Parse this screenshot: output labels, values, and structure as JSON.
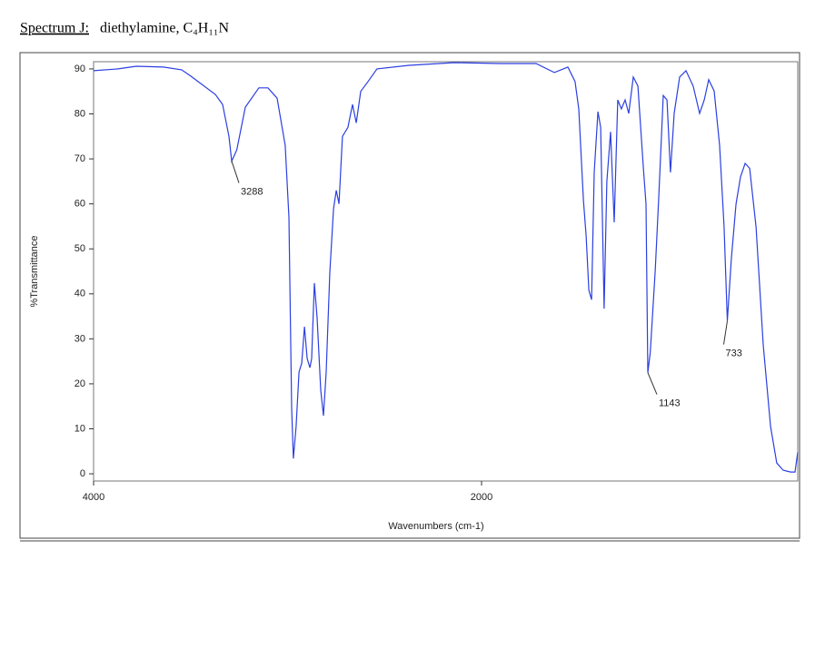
{
  "chart_data": {
    "type": "line",
    "title_label": "Spectrum J:",
    "title": "diethylamine, C₄H₁₁N",
    "x_label": "Wavenumbers (cm-1)",
    "y_label": "%Transmittance",
    "color": "#2b3fe0",
    "xlim": [
      4000,
      370
    ],
    "xticks": [
      4000,
      2000
    ],
    "ylim": [
      -1.6,
      91.6
    ],
    "yticks": [
      0,
      10,
      20,
      30,
      40,
      50,
      60,
      70,
      80,
      90
    ],
    "x": [
      4000,
      3874,
      3780,
      3640,
      3546,
      3499,
      3372,
      3335,
      3302,
      3288,
      3262,
      3218,
      3148,
      3101,
      3054,
      3012,
      2993,
      2979,
      2970,
      2956,
      2941,
      2927,
      2913,
      2899,
      2885,
      2876,
      2862,
      2848,
      2829,
      2815,
      2801,
      2782,
      2763,
      2749,
      2735,
      2717,
      2689,
      2665,
      2646,
      2623,
      2585,
      2539,
      2375,
      2141,
      1906,
      1719,
      1625,
      1555,
      1518,
      1499,
      1475,
      1461,
      1447,
      1433,
      1419,
      1400,
      1386,
      1368,
      1354,
      1335,
      1316,
      1298,
      1279,
      1260,
      1241,
      1218,
      1194,
      1166,
      1152,
      1143,
      1130,
      1105,
      1087,
      1063,
      1044,
      1026,
      1007,
      979,
      946,
      909,
      876,
      852,
      829,
      801,
      773,
      750,
      733,
      712,
      688,
      665,
      641,
      618,
      585,
      548,
      510,
      478,
      445,
      407,
      384,
      370
    ],
    "values": [
      89.6,
      90,
      90.6,
      90.4,
      89.8,
      88.4,
      84.3,
      82.1,
      75,
      69.5,
      72,
      81.5,
      85.8,
      85.8,
      83.5,
      73,
      57,
      14.5,
      3.4,
      10.5,
      22.6,
      24.6,
      32.7,
      25.6,
      23.6,
      25.6,
      42.4,
      34.7,
      18.6,
      12.9,
      22.6,
      44.8,
      58.9,
      63,
      60,
      75,
      77,
      82.1,
      78,
      85,
      87.2,
      90,
      90.8,
      91.4,
      91.2,
      91.2,
      89.2,
      90.4,
      87.2,
      81.1,
      60.9,
      52.9,
      40.8,
      38.7,
      67,
      80.5,
      77,
      36.7,
      65,
      76,
      55.9,
      83.1,
      81.1,
      83.1,
      80.1,
      88.2,
      86.2,
      68,
      60,
      22.5,
      27,
      45,
      60.9,
      84.1,
      83.1,
      67,
      80.1,
      88.2,
      89.6,
      86.2,
      80.1,
      83.1,
      87.6,
      85.1,
      73,
      55,
      34,
      48,
      60,
      66,
      69,
      67.9,
      54.9,
      28.7,
      10.5,
      2.4,
      0.8,
      0.4,
      0.4,
      4.8
    ],
    "annotations": [
      {
        "label": "3288",
        "x": 3288,
        "y": 69.5
      },
      {
        "label": "1143",
        "x": 1143,
        "y": 22.5
      },
      {
        "label": "733",
        "x": 733,
        "y": 34
      }
    ]
  }
}
